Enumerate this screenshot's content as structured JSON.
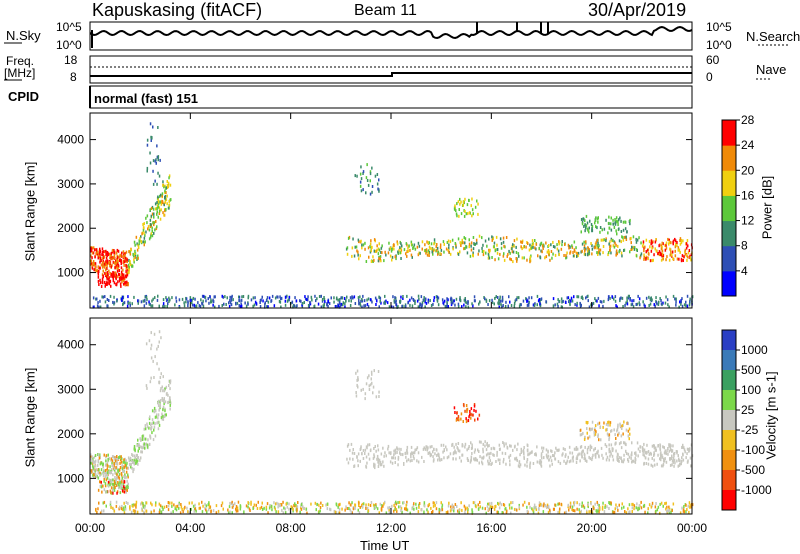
{
  "header": {
    "station": "Kapuskasing (fitACF)",
    "beam": "Beam 11",
    "date": "30/Apr/2019"
  },
  "nsky_panel": {
    "left_label": "N.Sky",
    "right_label": "N.Search",
    "left_ticks": [
      "10^5",
      "10^0"
    ],
    "right_ticks": [
      "10^5",
      "10^0"
    ]
  },
  "freq_panel": {
    "left_label_1": "Freq.",
    "left_label_2": "[MHz]",
    "right_label": "Nave",
    "left_ticks": [
      "18",
      "8"
    ],
    "right_ticks": [
      "60",
      "0"
    ]
  },
  "cpid_panel": {
    "label": "CPID",
    "value": "normal (fast) 151"
  },
  "chart_data": [
    {
      "type": "heatmap",
      "name": "power",
      "ylabel": "Slant Range [km]",
      "yticks": [
        1000,
        2000,
        3000,
        4000
      ],
      "ylim": [
        200,
        4600
      ],
      "colorbar_label": "Power [dB]",
      "colorbar_ticks": [
        "4",
        "8",
        "12",
        "16",
        "20",
        "24",
        "28"
      ],
      "colors": [
        "#0000ff",
        "#2e4fb5",
        "#3a8a6a",
        "#5cc83a",
        "#f0d010",
        "#f08a08",
        "#ff0000"
      ]
    },
    {
      "type": "heatmap",
      "name": "velocity",
      "ylabel": "Slant Range [km]",
      "yticks": [
        1000,
        2000,
        3000,
        4000
      ],
      "ylim": [
        200,
        4600
      ],
      "colorbar_label": "Velocity [m s-1]",
      "colorbar_ticks": [
        "1000",
        "500",
        "100",
        "25",
        "-25",
        "-100",
        "-500",
        "-1000"
      ],
      "colors": [
        "#2a3fc4",
        "#3a7ab8",
        "#3aa060",
        "#7cd84a",
        "#c8c8c0",
        "#f0c020",
        "#f09010",
        "#f05010",
        "#ff0000"
      ],
      "xlabel": "Time UT",
      "xticks": [
        "00:00",
        "04:00",
        "08:00",
        "12:00",
        "16:00",
        "20:00",
        "00:00"
      ]
    }
  ]
}
